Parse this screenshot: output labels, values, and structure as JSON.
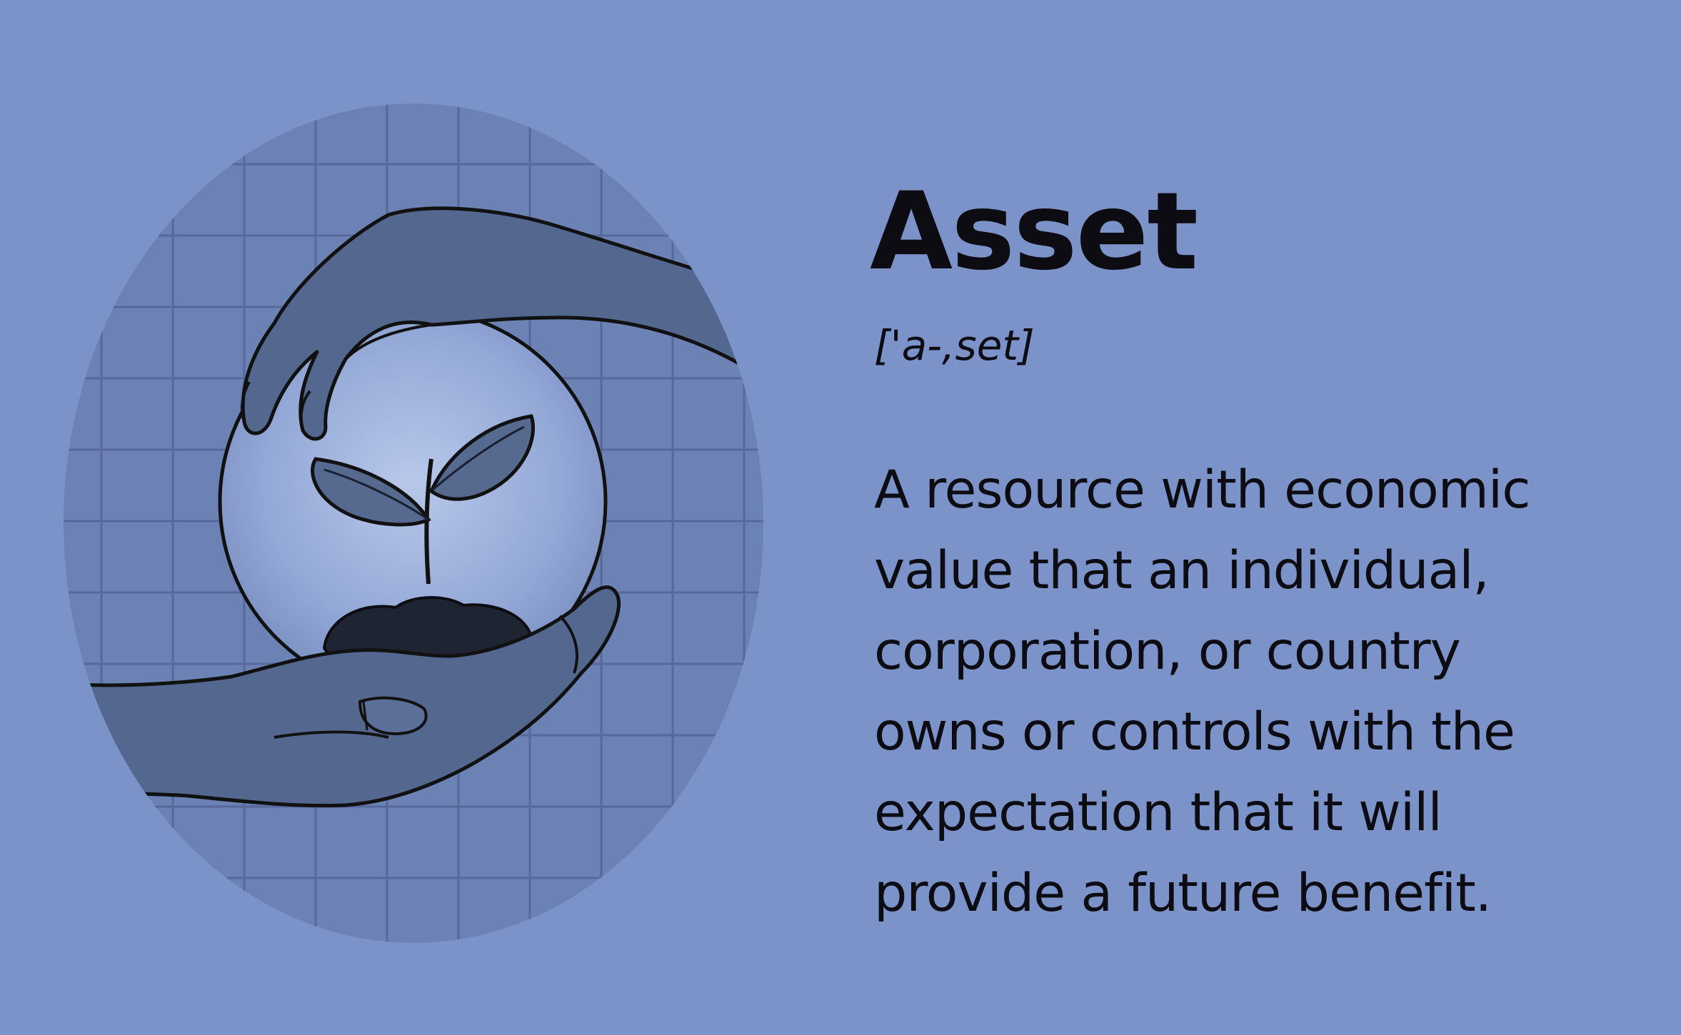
{
  "definition_card": {
    "term": "Asset",
    "pronunciation": "['a-,set]",
    "definition_lines": [
      "A resource with economic",
      "value that an individual,",
      "corporation, or country",
      "owns or controls with the",
      "expectation that it will",
      "provide a future benefit."
    ]
  },
  "colors": {
    "background": "#7b93c9",
    "circle_fill": "#6c82b4",
    "grid_line": "#56699a",
    "hand_fill": "#54678f",
    "ink": "#0c0c12",
    "sphere_glow": "#aebfe3"
  },
  "illustration": {
    "subject": "hands-protecting-sprout-in-sphere"
  }
}
